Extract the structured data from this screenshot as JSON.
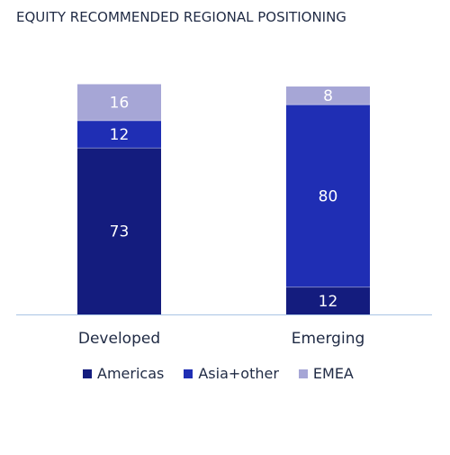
{
  "chart_data": {
    "type": "bar",
    "stacked": true,
    "title": "EQUITY RECOMMENDED REGIONAL POSITIONING",
    "categories": [
      "Developed",
      "Emerging"
    ],
    "series": [
      {
        "name": "Americas",
        "color": "#141c7e",
        "values": [
          73,
          12
        ]
      },
      {
        "name": "Asia+other",
        "color": "#1f2eb4",
        "values": [
          12,
          80
        ]
      },
      {
        "name": "EMEA",
        "color": "#a6a6d6",
        "values": [
          16,
          8
        ]
      }
    ],
    "ylim": [
      0,
      100
    ],
    "grid": false,
    "legend_position": "bottom",
    "xlabel": "",
    "ylabel": ""
  }
}
